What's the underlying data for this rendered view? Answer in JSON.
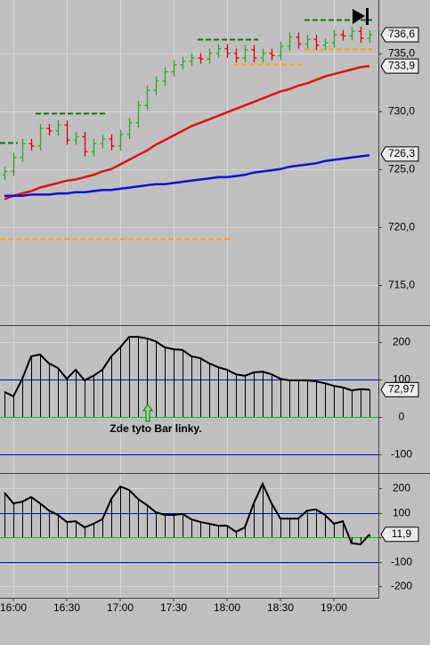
{
  "chart_data": [
    {
      "type": "ohlc",
      "x": [
        955,
        960,
        965,
        970,
        975,
        980,
        985,
        990,
        995,
        1000,
        1005,
        1010,
        1015,
        1020,
        1025,
        1030,
        1035,
        1040,
        1045,
        1050,
        1055,
        1060,
        1065,
        1070,
        1075,
        1080,
        1085,
        1090,
        1095,
        1100,
        1105,
        1110,
        1115,
        1120,
        1125,
        1130,
        1135,
        1140,
        1145,
        1150,
        1155,
        1160
      ],
      "xlim": [
        952.5,
        1165
      ],
      "ylim": [
        711.6,
        739.6
      ],
      "yticks": [
        {
          "value": 715,
          "label": "715,0"
        },
        {
          "value": 720,
          "label": "720,0"
        },
        {
          "value": 725,
          "label": "725,0"
        },
        {
          "value": 730,
          "label": "730,0"
        },
        {
          "value": 735,
          "label": "735,0"
        }
      ],
      "grid": true,
      "up_color": "#2fa82f",
      "down_color": "#e00000",
      "open": [
        724.5,
        724.8,
        726.0,
        727.2,
        727.0,
        728.5,
        728.3,
        728.8,
        727.5,
        727.8,
        726.5,
        727.2,
        727.6,
        727.0,
        728.0,
        729.0,
        730.5,
        731.8,
        732.6,
        733.4,
        734.0,
        734.3,
        734.6,
        734.5,
        735.0,
        735.4,
        735.0,
        734.6,
        735.3,
        734.6,
        735.0,
        734.8,
        735.6,
        736.4,
        735.8,
        736.2,
        735.7,
        735.9,
        736.6,
        736.5,
        736.9,
        736.3
      ],
      "high": [
        725.2,
        726.4,
        727.6,
        727.6,
        728.9,
        728.9,
        729.2,
        729.2,
        728.2,
        728.2,
        727.6,
        728.0,
        728.0,
        728.4,
        729.4,
        730.9,
        732.2,
        733.0,
        733.8,
        734.4,
        734.7,
        735.0,
        735.0,
        735.4,
        735.8,
        735.8,
        735.4,
        735.7,
        735.7,
        735.4,
        735.4,
        736.0,
        736.8,
        736.8,
        736.6,
        736.6,
        736.3,
        737.0,
        737.0,
        737.3,
        737.3,
        737.0
      ],
      "low": [
        724.1,
        724.4,
        725.6,
        726.6,
        726.6,
        727.9,
        727.9,
        727.1,
        727.1,
        726.1,
        726.1,
        726.8,
        726.6,
        726.6,
        727.6,
        728.6,
        730.1,
        731.4,
        732.2,
        733.0,
        733.6,
        733.9,
        734.1,
        734.1,
        734.6,
        734.6,
        734.2,
        734.2,
        734.2,
        734.2,
        734.4,
        734.4,
        735.2,
        735.4,
        735.4,
        735.3,
        735.3,
        735.5,
        736.1,
        736.1,
        735.9,
        735.9
      ],
      "close": [
        724.8,
        726.0,
        727.2,
        727.0,
        728.5,
        728.3,
        728.8,
        727.5,
        727.8,
        726.5,
        727.2,
        727.6,
        727.0,
        728.0,
        729.0,
        730.5,
        731.8,
        732.6,
        733.4,
        734.0,
        734.3,
        734.6,
        734.5,
        735.0,
        735.4,
        735.0,
        734.6,
        735.3,
        734.6,
        735.0,
        734.8,
        735.6,
        736.4,
        735.8,
        736.2,
        735.7,
        735.9,
        736.6,
        736.5,
        736.9,
        736.3,
        736.6
      ],
      "series": [
        {
          "color": "#e01010",
          "values": [
            722.4,
            722.7,
            722.9,
            723.1,
            723.4,
            723.6,
            723.8,
            724.0,
            724.1,
            724.3,
            724.5,
            724.8,
            725.0,
            725.4,
            725.8,
            726.2,
            726.6,
            727.1,
            727.5,
            727.9,
            728.3,
            728.7,
            729.0,
            729.3,
            729.6,
            729.9,
            730.2,
            730.5,
            730.8,
            731.1,
            731.4,
            731.7,
            731.9,
            732.2,
            732.4,
            732.7,
            733.0,
            733.2,
            733.4,
            733.6,
            733.8,
            733.9
          ]
        },
        {
          "color": "#1010d8",
          "values": [
            722.7,
            722.7,
            722.7,
            722.8,
            722.8,
            722.8,
            722.9,
            722.9,
            723.0,
            723.0,
            723.1,
            723.2,
            723.2,
            723.3,
            723.4,
            723.5,
            723.6,
            723.7,
            723.7,
            723.8,
            723.9,
            724.0,
            724.1,
            724.2,
            724.3,
            724.3,
            724.4,
            724.5,
            724.7,
            724.8,
            724.9,
            725.0,
            725.2,
            725.3,
            725.4,
            725.5,
            725.7,
            725.8,
            725.9,
            726.0,
            726.1,
            726.2
          ]
        }
      ],
      "levels": [
        {
          "value": 727.3,
          "x": [
            952.5,
            962.5
          ],
          "color": "#1a6e1a"
        },
        {
          "value": 729.8,
          "x": [
            972.5,
            1012.5
          ],
          "color": "#1a6e1a"
        },
        {
          "value": 736.2,
          "x": [
            1063.5,
            1097.5
          ],
          "color": "#1a6e1a"
        },
        {
          "value": 737.9,
          "x": [
            1123.5,
            1161.5
          ],
          "color": "#1a6e1a"
        },
        {
          "value": 719.0,
          "x": [
            952.5,
            1082.5
          ],
          "color": "#ffa500"
        },
        {
          "value": 734.1,
          "x": [
            1083.5,
            1122.5
          ],
          "color": "#ffa500"
        },
        {
          "value": 735.4,
          "x": [
            1123.5,
            1161.5
          ],
          "color": "#ffa500"
        }
      ],
      "markers": [
        {
          "value": 736.6,
          "label": "736,6"
        },
        {
          "value": 733.9,
          "label": "733,9"
        },
        {
          "value": 726.3,
          "label": "726,3"
        }
      ]
    },
    {
      "type": "line",
      "x": [
        955,
        960,
        965,
        970,
        975,
        980,
        985,
        990,
        995,
        1000,
        1005,
        1010,
        1015,
        1020,
        1025,
        1030,
        1035,
        1040,
        1045,
        1050,
        1055,
        1060,
        1065,
        1070,
        1075,
        1080,
        1085,
        1090,
        1095,
        1100,
        1105,
        1110,
        1115,
        1120,
        1125,
        1130,
        1135,
        1140,
        1145,
        1150,
        1155,
        1160
      ],
      "xlim": [
        952.5,
        1165
      ],
      "ylim": [
        -147.6,
        242.9
      ],
      "yticks": [
        -100,
        0,
        100,
        200
      ],
      "grid": true,
      "stems": true,
      "color": "#000000",
      "values": [
        67,
        55,
        102,
        162,
        167,
        143,
        131,
        102,
        126,
        98,
        110,
        126,
        162,
        186,
        214,
        214,
        210,
        202,
        186,
        181,
        179,
        162,
        157,
        143,
        133,
        126,
        114,
        110,
        119,
        121,
        114,
        102,
        98,
        98,
        98,
        95,
        90,
        83,
        79,
        71,
        74,
        72.97
      ],
      "hlines": [
        {
          "value": 100,
          "color": "#0000c8"
        },
        {
          "value": 0,
          "color": "#00c800"
        },
        {
          "value": -100,
          "color": "#0000c8"
        }
      ],
      "marker": {
        "value": 72.97,
        "label": "72,97"
      },
      "annotation": "Zde tyto Bar linky."
    },
    {
      "type": "line",
      "x": [
        955,
        960,
        965,
        970,
        975,
        980,
        985,
        990,
        995,
        1000,
        1005,
        1010,
        1015,
        1020,
        1025,
        1030,
        1035,
        1040,
        1045,
        1050,
        1055,
        1060,
        1065,
        1070,
        1075,
        1080,
        1085,
        1090,
        1095,
        1100,
        1105,
        1110,
        1115,
        1120,
        1125,
        1130,
        1135,
        1140,
        1145,
        1150,
        1155,
        1160
      ],
      "xlim": [
        952.5,
        1165
      ],
      "ylim": [
        -243.6,
        258.2
      ],
      "yticks": [
        -200,
        -100,
        0,
        100,
        200
      ],
      "xticks": [
        {
          "value": 960,
          "label": "16:00"
        },
        {
          "value": 990,
          "label": "16:30"
        },
        {
          "value": 1020,
          "label": "17:00"
        },
        {
          "value": 1050,
          "label": "17:30"
        },
        {
          "value": 1080,
          "label": "18:00"
        },
        {
          "value": 1110,
          "label": "18:30"
        },
        {
          "value": 1140,
          "label": "19:00"
        }
      ],
      "grid": true,
      "stems": true,
      "color": "#000000",
      "values": [
        182,
        138,
        145,
        164,
        138,
        109,
        91,
        62,
        65,
        40,
        55,
        73,
        156,
        207,
        193,
        156,
        131,
        102,
        91,
        91,
        95,
        73,
        62,
        55,
        47,
        47,
        22,
        40,
        138,
        218,
        138,
        76,
        76,
        76,
        109,
        113,
        91,
        55,
        65,
        -25,
        -29,
        11.9
      ],
      "hlines": [
        {
          "value": 100,
          "color": "#0000c8"
        },
        {
          "value": 0,
          "color": "#00c800"
        },
        {
          "value": -100,
          "color": "#0000c8"
        }
      ],
      "marker": {
        "value": 11.9,
        "label": "11,9"
      }
    }
  ]
}
